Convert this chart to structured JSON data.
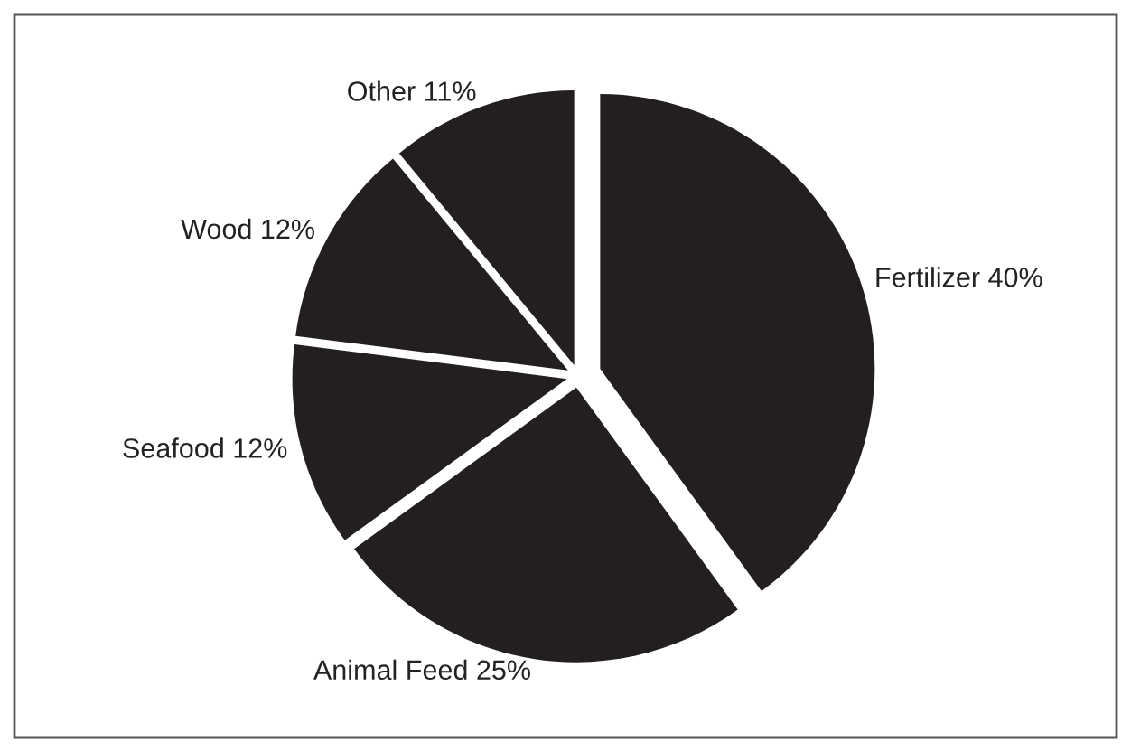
{
  "chart_data": {
    "type": "pie",
    "categories": [
      "Fertilizer",
      "Animal Feed",
      "Seafood",
      "Wood",
      "Other"
    ],
    "values": [
      40,
      25,
      12,
      12,
      11
    ],
    "value_labels": [
      "40%",
      "25%",
      "12%",
      "12%",
      "11%"
    ],
    "colors": [
      "#231f20",
      "#231f20",
      "#231f20",
      "#231f20",
      "#231f20"
    ],
    "legend": false
  }
}
